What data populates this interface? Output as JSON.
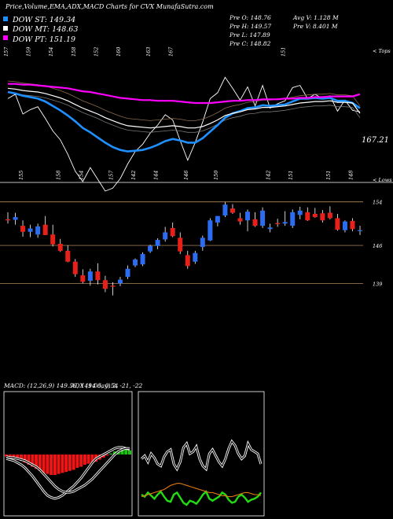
{
  "title": "Price,Volume,EMA,ADX,MACD Charts for CVX  MunafaSutra.com",
  "legend": [
    {
      "label": "DOW ST: 149.34",
      "color": "#1e90ff"
    },
    {
      "label": "DOW MT: 148.63",
      "color": "#ffffff"
    },
    {
      "label": "DOW PT: 151.19",
      "color": "#ff00ff"
    }
  ],
  "info": {
    "col1": [
      "Pre  O: 148.76",
      "Pre  H: 149.57",
      "Pre  L: 147.89",
      "Pre  C: 148.82"
    ],
    "col2": [
      "Avg V: 1.128  M",
      "Pre  V: 8.401 M"
    ]
  },
  "tags": {
    "tops": "< Tops",
    "lows": "< Lows"
  },
  "top_labels": [
    "157",
    "159",
    "154",
    "158",
    "152",
    "160",
    "163",
    "167",
    "151"
  ],
  "low_labels": [
    "155",
    "158",
    "154",
    "157",
    "142",
    "144",
    "146",
    "150",
    "142",
    "151",
    "151",
    "148"
  ],
  "ema_panel": {
    "last_value": "167.21"
  },
  "candle_panel": {
    "levels": [
      "154",
      "146",
      "139"
    ]
  },
  "macd_label": "MACD: (12,26,9) 149.59, 149.05, 0.54",
  "adx_label": "ADX (14 day) 2, -21, -22",
  "chart_data": {
    "type": "candlestick",
    "candles": [
      {
        "o": 150.8,
        "h": 152.1,
        "l": 150.0,
        "c": 150.6
      },
      {
        "o": 150.7,
        "h": 152.0,
        "l": 149.8,
        "c": 151.2
      },
      {
        "o": 149.6,
        "h": 150.6,
        "l": 147.6,
        "c": 148.5
      },
      {
        "o": 148.5,
        "h": 149.8,
        "l": 147.5,
        "c": 149.1
      },
      {
        "o": 148.0,
        "h": 150.0,
        "l": 147.4,
        "c": 149.5
      },
      {
        "o": 149.8,
        "h": 151.4,
        "l": 147.9,
        "c": 147.9
      },
      {
        "o": 148.0,
        "h": 149.8,
        "l": 145.8,
        "c": 146.2
      },
      {
        "o": 146.3,
        "h": 147.2,
        "l": 144.8,
        "c": 145.0
      },
      {
        "o": 145.0,
        "h": 146.0,
        "l": 142.9,
        "c": 143.0
      },
      {
        "o": 143.0,
        "h": 143.5,
        "l": 140.2,
        "c": 140.7
      },
      {
        "o": 140.5,
        "h": 141.6,
        "l": 139.0,
        "c": 139.3
      },
      {
        "o": 139.5,
        "h": 141.7,
        "l": 138.6,
        "c": 141.2
      },
      {
        "o": 141.2,
        "h": 142.7,
        "l": 138.8,
        "c": 139.6
      },
      {
        "o": 139.6,
        "h": 140.4,
        "l": 137.4,
        "c": 138.0
      },
      {
        "o": 138.6,
        "h": 139.2,
        "l": 136.8,
        "c": 138.4
      },
      {
        "o": 139.0,
        "h": 140.2,
        "l": 138.5,
        "c": 139.7
      },
      {
        "o": 140.2,
        "h": 142.3,
        "l": 139.8,
        "c": 141.7
      },
      {
        "o": 142.3,
        "h": 143.6,
        "l": 142.0,
        "c": 143.4
      },
      {
        "o": 142.5,
        "h": 144.7,
        "l": 142.2,
        "c": 144.4
      },
      {
        "o": 144.9,
        "h": 146.1,
        "l": 144.6,
        "c": 145.9
      },
      {
        "o": 145.9,
        "h": 147.3,
        "l": 145.3,
        "c": 147.0
      },
      {
        "o": 147.1,
        "h": 149.4,
        "l": 146.7,
        "c": 148.4
      },
      {
        "o": 149.2,
        "h": 150.2,
        "l": 147.5,
        "c": 147.7
      },
      {
        "o": 147.4,
        "h": 148.4,
        "l": 144.4,
        "c": 144.9
      },
      {
        "o": 144.2,
        "h": 145.0,
        "l": 141.7,
        "c": 142.2
      },
      {
        "o": 143.0,
        "h": 145.0,
        "l": 142.6,
        "c": 144.6
      },
      {
        "o": 145.7,
        "h": 147.8,
        "l": 145.0,
        "c": 147.4
      },
      {
        "o": 146.9,
        "h": 151.0,
        "l": 146.8,
        "c": 150.6
      },
      {
        "o": 150.2,
        "h": 151.4,
        "l": 149.5,
        "c": 151.4
      },
      {
        "o": 151.5,
        "h": 154.0,
        "l": 151.2,
        "c": 153.5
      },
      {
        "o": 152.8,
        "h": 153.6,
        "l": 151.8,
        "c": 152.0
      },
      {
        "o": 151.0,
        "h": 152.0,
        "l": 149.8,
        "c": 150.4
      },
      {
        "o": 150.6,
        "h": 152.6,
        "l": 148.6,
        "c": 152.2
      },
      {
        "o": 150.8,
        "h": 152.1,
        "l": 149.4,
        "c": 149.6
      },
      {
        "o": 149.6,
        "h": 153.0,
        "l": 149.2,
        "c": 152.4
      },
      {
        "o": 149.0,
        "h": 150.0,
        "l": 148.4,
        "c": 149.3
      },
      {
        "o": 150.1,
        "h": 150.9,
        "l": 149.4,
        "c": 149.9
      },
      {
        "o": 150.0,
        "h": 152.3,
        "l": 149.6,
        "c": 150.3
      },
      {
        "o": 149.6,
        "h": 152.6,
        "l": 149.2,
        "c": 152.1
      },
      {
        "o": 151.6,
        "h": 153.1,
        "l": 150.8,
        "c": 152.4
      },
      {
        "o": 152.1,
        "h": 153.0,
        "l": 150.5,
        "c": 150.6
      },
      {
        "o": 151.8,
        "h": 152.9,
        "l": 151.1,
        "c": 151.2
      },
      {
        "o": 151.9,
        "h": 152.5,
        "l": 150.2,
        "c": 150.6
      },
      {
        "o": 152.0,
        "h": 153.2,
        "l": 150.8,
        "c": 151.0
      },
      {
        "o": 151.0,
        "h": 151.8,
        "l": 148.7,
        "c": 148.9
      },
      {
        "o": 148.8,
        "h": 150.6,
        "l": 148.4,
        "c": 150.4
      },
      {
        "o": 150.5,
        "h": 151.0,
        "l": 148.6,
        "c": 149.0
      },
      {
        "o": 148.8,
        "h": 149.6,
        "l": 147.9,
        "c": 148.8
      }
    ],
    "levels": [
      154,
      146,
      139
    ],
    "ylim": [
      134,
      157
    ],
    "ema_series": [
      {
        "name": "DOW ST",
        "color": "#1e90ff",
        "values": [
          151.5,
          151.3,
          151.0,
          150.8,
          150.6,
          150.2,
          149.6,
          149.0,
          148.3,
          147.5,
          146.6,
          146.0,
          145.3,
          144.6,
          144.0,
          143.6,
          143.4,
          143.5,
          143.6,
          143.9,
          144.3,
          144.8,
          145.1,
          144.9,
          144.6,
          144.6,
          145.2,
          146.1,
          147.0,
          148.0,
          148.6,
          148.9,
          149.3,
          149.4,
          149.7,
          149.6,
          149.7,
          149.8,
          150.2,
          150.6,
          150.6,
          150.7,
          150.6,
          150.7,
          150.3,
          150.3,
          150.0,
          149.3
        ]
      },
      {
        "name": "DOW MT",
        "color": "#ffffff",
        "values": [
          152.0,
          151.9,
          151.7,
          151.6,
          151.5,
          151.3,
          151.0,
          150.7,
          150.3,
          149.8,
          149.3,
          148.9,
          148.5,
          148.0,
          147.6,
          147.2,
          146.9,
          146.8,
          146.7,
          146.6,
          146.7,
          146.8,
          146.9,
          146.8,
          146.6,
          146.6,
          146.8,
          147.2,
          147.7,
          148.3,
          148.6,
          148.8,
          149.1,
          149.2,
          149.4,
          149.4,
          149.5,
          149.6,
          149.8,
          150.0,
          150.1,
          150.2,
          150.2,
          150.3,
          150.1,
          150.1,
          150.0,
          148.6
        ]
      },
      {
        "name": "DOW PT",
        "color": "#ff00ff",
        "values": [
          152.6,
          152.6,
          152.5,
          152.5,
          152.4,
          152.3,
          152.2,
          152.1,
          152.0,
          151.8,
          151.6,
          151.5,
          151.3,
          151.1,
          150.9,
          150.7,
          150.6,
          150.5,
          150.4,
          150.4,
          150.3,
          150.3,
          150.3,
          150.2,
          150.1,
          150.0,
          150.0,
          150.0,
          150.1,
          150.2,
          150.3,
          150.3,
          150.4,
          150.4,
          150.5,
          150.5,
          150.5,
          150.6,
          150.6,
          150.7,
          150.7,
          150.8,
          150.8,
          150.9,
          150.9,
          150.9,
          150.9,
          151.2
        ]
      }
    ],
    "macd": {
      "histogram": [
        -2,
        -3,
        -4,
        -5,
        -6,
        -8,
        -10,
        -12,
        -14,
        -16,
        -18,
        -19,
        -20,
        -20,
        -19,
        -18,
        -17,
        -16,
        -15,
        -13,
        -12,
        -10,
        -9,
        -8,
        -7,
        -5,
        -3,
        -1,
        1,
        3,
        4,
        5,
        5,
        4
      ],
      "macd": [
        -4,
        -5,
        -6,
        -8,
        -10,
        -13,
        -17,
        -21,
        -26,
        -31,
        -36,
        -40,
        -42,
        -43,
        -42,
        -40,
        -37,
        -34,
        -31,
        -27,
        -23,
        -18,
        -13,
        -8,
        -4,
        -2,
        0,
        2,
        4,
        6,
        7,
        7,
        6,
        5
      ],
      "signal": [
        -2,
        -3,
        -3,
        -4,
        -5,
        -6,
        -8,
        -10,
        -12,
        -15,
        -19,
        -23,
        -27,
        -31,
        -34,
        -36,
        -37,
        -37,
        -36,
        -34,
        -32,
        -30,
        -27,
        -24,
        -20,
        -16,
        -12,
        -8,
        -4,
        0,
        3,
        5,
        6,
        6
      ]
    },
    "adx": {
      "dip": [
        55,
        58,
        52,
        60,
        56,
        50,
        48,
        57,
        62,
        64,
        50,
        45,
        52,
        66,
        70,
        60,
        62,
        67,
        55,
        48,
        45,
        60,
        64,
        58,
        52,
        48,
        55,
        65,
        72,
        68,
        60,
        55,
        58,
        70,
        64,
        62,
        60,
        50
      ],
      "dim": [
        20,
        18,
        22,
        19,
        16,
        20,
        23,
        18,
        14,
        13,
        20,
        22,
        17,
        12,
        10,
        14,
        13,
        11,
        15,
        20,
        23,
        16,
        14,
        16,
        18,
        22,
        20,
        15,
        12,
        13,
        18,
        20,
        17,
        13,
        15,
        16,
        18,
        22
      ],
      "adx": [
        18,
        19,
        20,
        21,
        22,
        23,
        24,
        25,
        27,
        29,
        30,
        31,
        31,
        30,
        29,
        28,
        27,
        26,
        25,
        24,
        23,
        22,
        22,
        21,
        20,
        19,
        19,
        18,
        18,
        19,
        20,
        21,
        22,
        22,
        21,
        20,
        20,
        19
      ]
    }
  }
}
